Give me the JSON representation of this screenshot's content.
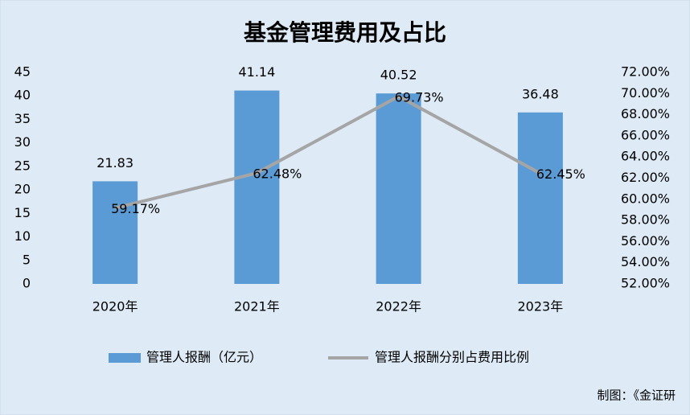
{
  "chart_data": {
    "type": "bar",
    "title": "基金管理费用及占比",
    "categories": [
      "2020年",
      "2021年",
      "2022年",
      "2023年"
    ],
    "series": [
      {
        "name": "管理人报酬（亿元）",
        "type": "bar",
        "color": "#5b9bd5",
        "values": [
          21.83,
          41.14,
          40.52,
          36.48
        ]
      },
      {
        "name": "管理人报酬分别占费用比例",
        "type": "line",
        "axis": "y2",
        "color": "#a5a5a5",
        "values": [
          59.17,
          62.48,
          69.73,
          62.45
        ],
        "value_labels": [
          "59.17%",
          "62.48%",
          "69.73%",
          "62.45%"
        ]
      }
    ],
    "ylim": [
      0,
      45
    ],
    "yticks": [
      0,
      5,
      10,
      15,
      20,
      25,
      30,
      35,
      40,
      45
    ],
    "y2lim": [
      52,
      72
    ],
    "y2ticks": [
      {
        "value": 52,
        "label": "52.00%"
      },
      {
        "value": 54,
        "label": "54.00%"
      },
      {
        "value": 56,
        "label": "56.00%"
      },
      {
        "value": 58,
        "label": "58.00%"
      },
      {
        "value": 60,
        "label": "60.00%"
      },
      {
        "value": 62,
        "label": "62.00%"
      },
      {
        "value": 64,
        "label": "64.00%"
      },
      {
        "value": 66,
        "label": "66.00%"
      },
      {
        "value": 68,
        "label": "68.00%"
      },
      {
        "value": 70,
        "label": "70.00%"
      },
      {
        "value": 72,
        "label": "72.00%"
      }
    ],
    "grid": false,
    "legend": "bottom",
    "source": "制图：《金证研"
  }
}
